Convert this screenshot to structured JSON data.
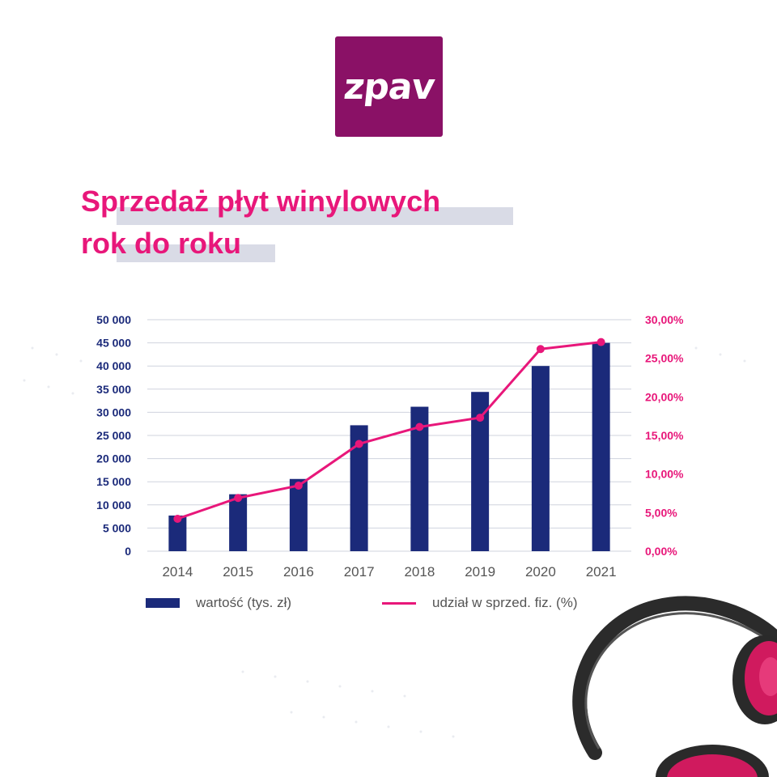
{
  "brand": {
    "logo_text": "zpav",
    "logo_color": "#8a1166"
  },
  "title": {
    "line1": "Sprzedaż płyt winylowych",
    "line2": "rok do roku"
  },
  "colors": {
    "bar": "#1b2a7a",
    "line": "#e8177a",
    "grid": "#cfd3de",
    "title": "#e8177a"
  },
  "chart_data": {
    "type": "bar",
    "categories": [
      "2014",
      "2015",
      "2016",
      "2017",
      "2018",
      "2019",
      "2020",
      "2021"
    ],
    "series": [
      {
        "name": "wartość (tys. zł)",
        "type": "bar",
        "axis": "left",
        "values": [
          7700,
          12300,
          15600,
          27200,
          31200,
          34400,
          40000,
          45000
        ]
      },
      {
        "name": "udział w sprzed. fiz. (%)",
        "type": "line",
        "axis": "right",
        "values": [
          4.2,
          6.9,
          8.5,
          13.9,
          16.1,
          17.3,
          26.2,
          27.1
        ]
      }
    ],
    "y_left": {
      "ylim": [
        0,
        50000
      ],
      "ticks": [
        "0",
        "5 000",
        "10 000",
        "15 000",
        "20 000",
        "25 000",
        "30 000",
        "35 000",
        "40 000",
        "45 000",
        "50 000"
      ]
    },
    "y_right": {
      "ylim": [
        0,
        30
      ],
      "ticks": [
        "0,00%",
        "5,00%",
        "10,00%",
        "15,00%",
        "20,00%",
        "25,00%",
        "30,00%"
      ]
    },
    "grid": true,
    "legend": "bottom"
  }
}
